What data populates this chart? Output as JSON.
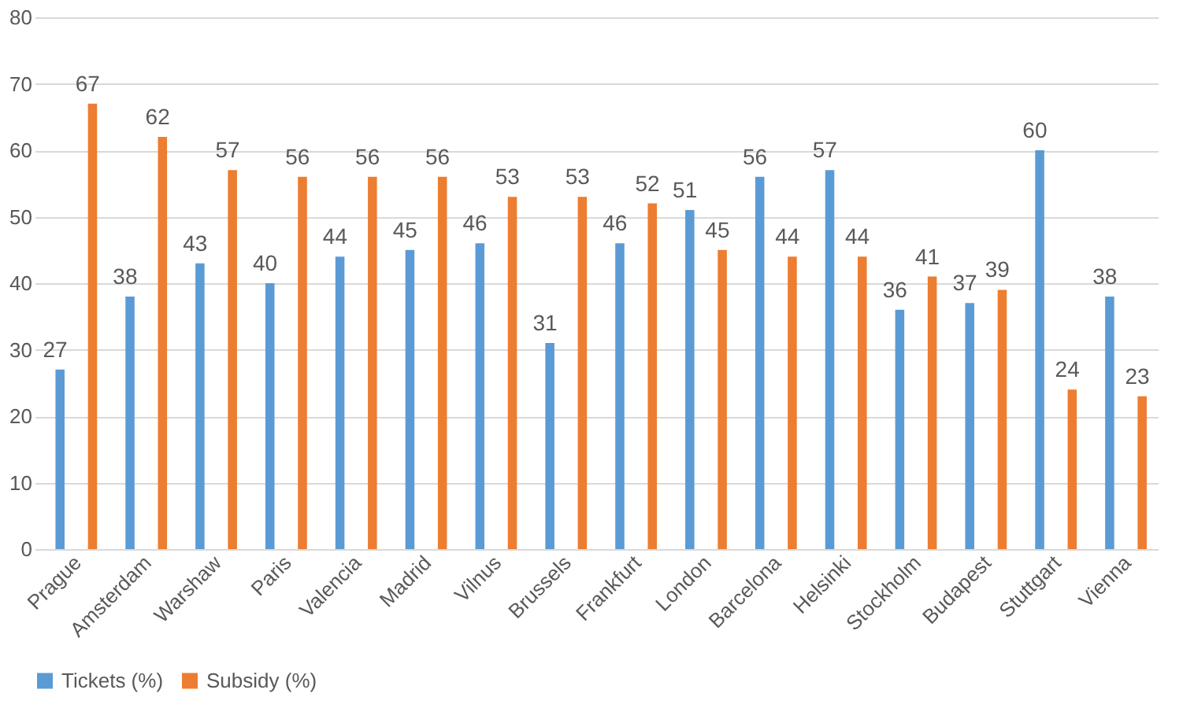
{
  "chart_data": {
    "type": "bar",
    "categories": [
      "Prague",
      "Amsterdam",
      "Warshaw",
      "Paris",
      "Valencia",
      "Madrid",
      "Vilnus",
      "Brussels",
      "Frankfurt",
      "London",
      "Barcelona",
      "Helsinki",
      "Stockholm",
      "Budapest",
      "Stuttgart",
      "Vienna"
    ],
    "series": [
      {
        "name": "Tickets (%)",
        "color": "#5b9bd5",
        "values": [
          27,
          38,
          43,
          40,
          44,
          45,
          46,
          31,
          46,
          51,
          56,
          57,
          36,
          37,
          60,
          38
        ]
      },
      {
        "name": "Subsidy (%)",
        "color": "#ed7d31",
        "values": [
          67,
          62,
          57,
          56,
          56,
          56,
          53,
          53,
          52,
          45,
          44,
          44,
          41,
          39,
          24,
          23
        ]
      }
    ],
    "ylim": [
      0,
      80
    ],
    "yticks": [
      0,
      10,
      20,
      30,
      40,
      50,
      60,
      70,
      80
    ],
    "grid": "y",
    "legend": "bottom",
    "data_labels": true
  }
}
